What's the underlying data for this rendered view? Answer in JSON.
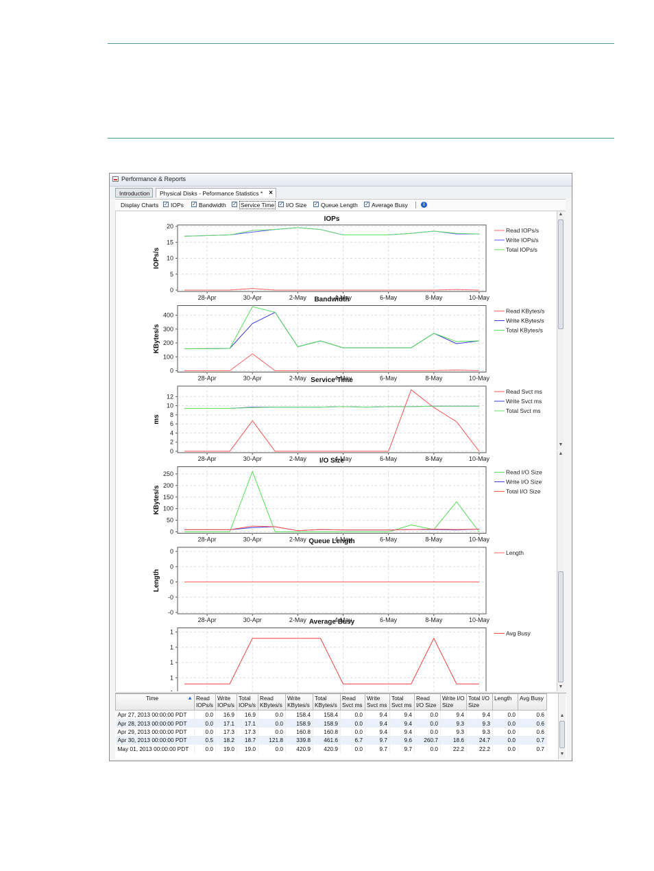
{
  "window": {
    "title": "Performance & Reports",
    "icon": "app-window-icon"
  },
  "tabs": [
    {
      "label": "Introduction"
    },
    {
      "label": "Physical Disks - Peformance Statistics *"
    }
  ],
  "toolbar": {
    "label": "Display Charts",
    "items": [
      {
        "label": "IOPs",
        "checked": true
      },
      {
        "label": "Bandwidth",
        "checked": true
      },
      {
        "label": "Service Time",
        "checked": true
      },
      {
        "label": "I/O Size",
        "checked": true
      },
      {
        "label": "Queue Length",
        "checked": true
      },
      {
        "label": "Average Busy",
        "checked": true
      }
    ],
    "info_icon": "info-icon"
  },
  "chart_data": [
    {
      "type": "line",
      "title": "IOPs",
      "ylabel": "IOPs/s",
      "ylim": [
        0,
        20
      ],
      "yticks": [
        "0",
        "5",
        "10",
        "15",
        "20"
      ],
      "x": [
        "27-Apr",
        "28-Apr",
        "29-Apr",
        "30-Apr",
        "1-May",
        "2-May",
        "3-May",
        "4-May",
        "5-May",
        "6-May",
        "7-May",
        "8-May",
        "9-May",
        "10-May"
      ],
      "xticks": [
        "28-Apr",
        "30-Apr",
        "2-May",
        "4-May",
        "6-May",
        "8-May",
        "10-May"
      ],
      "series": [
        {
          "name": "Read IOPs/s",
          "color": "#ff6060",
          "values": [
            0,
            0,
            0,
            0.5,
            0,
            0,
            0,
            0,
            0,
            0,
            0,
            0,
            0.2,
            0
          ]
        },
        {
          "name": "Write IOPs/s",
          "color": "#5a5aff",
          "values": [
            16.9,
            17.1,
            17.3,
            18.2,
            19.0,
            19.6,
            19.0,
            17.3,
            17.3,
            17.3,
            17.8,
            18.5,
            17.6,
            17.6
          ]
        },
        {
          "name": "Total IOPs/s",
          "color": "#66dd66",
          "values": [
            16.9,
            17.1,
            17.3,
            18.7,
            19.0,
            19.6,
            19.0,
            17.3,
            17.3,
            17.3,
            17.8,
            18.5,
            17.8,
            17.6
          ]
        }
      ]
    },
    {
      "type": "line",
      "title": "Bandwidth",
      "ylabel": "KBytes/s",
      "ylim": [
        0,
        460
      ],
      "yticks": [
        "0",
        "100",
        "200",
        "300",
        "400"
      ],
      "x": [
        "27-Apr",
        "28-Apr",
        "29-Apr",
        "30-Apr",
        "1-May",
        "2-May",
        "3-May",
        "4-May",
        "5-May",
        "6-May",
        "7-May",
        "8-May",
        "9-May",
        "10-May"
      ],
      "xticks": [
        "28-Apr",
        "30-Apr",
        "2-May",
        "4-May",
        "6-May",
        "8-May",
        "10-May"
      ],
      "series": [
        {
          "name": "Read KBytes/s",
          "color": "#ff6060",
          "values": [
            0,
            0,
            0,
            121.8,
            0,
            0,
            0,
            0,
            0,
            0,
            0,
            0,
            5,
            0
          ]
        },
        {
          "name": "Write KBytes/s",
          "color": "#3a3adf",
          "values": [
            158.4,
            158.9,
            160.8,
            339.8,
            420.9,
            173,
            215,
            165,
            165,
            165,
            165,
            270,
            195,
            215
          ]
        },
        {
          "name": "Total KBytes/s",
          "color": "#55dd55",
          "values": [
            158.4,
            158.9,
            160.8,
            461.6,
            420.9,
            173,
            215,
            165,
            165,
            165,
            165,
            270,
            210,
            215
          ]
        }
      ]
    },
    {
      "type": "line",
      "title": "Service Time",
      "ylabel": "ms",
      "ylim": [
        0,
        14
      ],
      "yticks": [
        "0",
        "2",
        "4",
        "6",
        "8",
        "10",
        "12"
      ],
      "x": [
        "27-Apr",
        "28-Apr",
        "29-Apr",
        "30-Apr",
        "1-May",
        "2-May",
        "3-May",
        "4-May",
        "5-May",
        "6-May",
        "7-May",
        "8-May",
        "9-May",
        "10-May"
      ],
      "xticks": [
        "28-Apr",
        "30-Apr",
        "2-May",
        "4-May",
        "6-May",
        "8-May",
        "10-May"
      ],
      "series": [
        {
          "name": "Read Svct ms",
          "color": "#ff5050",
          "values": [
            0,
            0,
            0,
            6.7,
            0,
            0,
            0,
            0,
            0,
            0,
            13.5,
            9.6,
            6.5,
            0
          ]
        },
        {
          "name": "Write Svct ms",
          "color": "#3a3adf",
          "values": [
            9.4,
            9.4,
            9.4,
            9.7,
            9.7,
            9.7,
            9.7,
            9.8,
            9.7,
            9.8,
            9.8,
            9.9,
            9.9,
            9.9
          ]
        },
        {
          "name": "Total Svct ms",
          "color": "#66dd66",
          "values": [
            9.4,
            9.4,
            9.4,
            9.6,
            9.7,
            9.7,
            9.7,
            9.8,
            9.7,
            9.8,
            9.8,
            9.9,
            9.9,
            9.9
          ]
        }
      ]
    },
    {
      "type": "line",
      "title": "I/O Size",
      "ylabel": "KBytes/s",
      "ylim": [
        0,
        275
      ],
      "yticks": [
        "0",
        "50",
        "100",
        "150",
        "200",
        "250"
      ],
      "x": [
        "27-Apr",
        "28-Apr",
        "29-Apr",
        "30-Apr",
        "1-May",
        "2-May",
        "3-May",
        "4-May",
        "5-May",
        "6-May",
        "7-May",
        "8-May",
        "9-May",
        "10-May"
      ],
      "xticks": [
        "28-Apr",
        "30-Apr",
        "2-May",
        "4-May",
        "6-May",
        "8-May",
        "10-May"
      ],
      "series": [
        {
          "name": "Read I/O Size",
          "color": "#55dd55",
          "values": [
            0,
            0,
            0,
            260.7,
            0,
            0,
            0,
            0,
            0,
            0,
            30,
            10,
            130,
            0
          ]
        },
        {
          "name": "Write I/O Size",
          "color": "#3a3adf",
          "values": [
            9.4,
            9.3,
            9.3,
            18.6,
            22.2,
            5,
            10,
            8,
            8,
            8,
            10,
            10,
            8,
            12
          ]
        },
        {
          "name": "Total I/O Size",
          "color": "#ff5050",
          "values": [
            9.4,
            9.3,
            9.3,
            24.7,
            22.2,
            5,
            10,
            8,
            8,
            8,
            10,
            12,
            10,
            12
          ]
        }
      ]
    },
    {
      "type": "line",
      "title": "Queue Length",
      "ylabel": "Length",
      "yticks": [
        "-0",
        "-0",
        "0",
        "0",
        "0"
      ],
      "x": [
        "27-Apr",
        "28-Apr",
        "29-Apr",
        "30-Apr",
        "1-May",
        "2-May",
        "3-May",
        "4-May",
        "5-May",
        "6-May",
        "7-May",
        "8-May",
        "9-May",
        "10-May"
      ],
      "xticks": [
        "28-Apr",
        "30-Apr",
        "2-May",
        "4-May",
        "6-May",
        "8-May",
        "10-May"
      ],
      "series": [
        {
          "name": "Length",
          "color": "#ff6060",
          "values": [
            0,
            0,
            0,
            0,
            0,
            0,
            0,
            0,
            0,
            0,
            0,
            0,
            0,
            0
          ]
        }
      ]
    },
    {
      "type": "line",
      "title": "Average Busy",
      "ylabel": "",
      "ylim": [
        0.58,
        0.72
      ],
      "yticks": [
        "1",
        "1",
        "1",
        "1",
        "1"
      ],
      "x": [
        "27-Apr",
        "28-Apr",
        "29-Apr",
        "30-Apr",
        "1-May",
        "2-May",
        "3-May",
        "4-May",
        "5-May",
        "6-May",
        "7-May",
        "8-May",
        "9-May",
        "10-May"
      ],
      "xticks": [
        "28-Apr",
        "30-Apr",
        "2-May",
        "4-May",
        "6-May",
        "8-May",
        "10-May"
      ],
      "series": [
        {
          "name": "Avg Busy",
          "color": "#ff4040",
          "values": [
            0.6,
            0.6,
            0.6,
            0.7,
            0.7,
            0.7,
            0.7,
            0.6,
            0.6,
            0.6,
            0.6,
            0.7,
            0.6,
            0.6
          ]
        }
      ]
    }
  ],
  "table": {
    "columns": [
      "Time",
      "Read IOPs/s",
      "Write IOPs/s",
      "Total IOPs/s",
      "Read KBytes/s",
      "Write KBytes/s",
      "Total KBytes/s",
      "Read Svct ms",
      "Write Svct ms",
      "Total Svct ms",
      "Read I/O Size",
      "Write I/O Size",
      "Total I/O Size",
      "Length",
      "Avg Busy"
    ],
    "rows": [
      [
        "Apr 27, 2013 00:00:00 PDT",
        "0.0",
        "16.9",
        "16.9",
        "0.0",
        "158.4",
        "158.4",
        "0.0",
        "9.4",
        "9.4",
        "0.0",
        "9.4",
        "9.4",
        "0.0",
        "0.6"
      ],
      [
        "Apr 28, 2013 00:00:00 PDT",
        "0.0",
        "17.1",
        "17.1",
        "0.0",
        "158.9",
        "158.9",
        "0.0",
        "9.4",
        "9.4",
        "0.0",
        "9.3",
        "9.3",
        "0.0",
        "0.6"
      ],
      [
        "Apr 29, 2013 00:00:00 PDT",
        "0.0",
        "17.3",
        "17.3",
        "0.0",
        "160.8",
        "160.8",
        "0.0",
        "9.4",
        "9.4",
        "0.0",
        "9.3",
        "9.3",
        "0.0",
        "0.6"
      ],
      [
        "Apr 30, 2013 00:00:00 PDT",
        "0.5",
        "18.2",
        "18.7",
        "121.8",
        "339.8",
        "461.6",
        "6.7",
        "9.7",
        "9.6",
        "260.7",
        "18.6",
        "24.7",
        "0.0",
        "0.7"
      ],
      [
        "May 01, 2013 00:00:00 PDT",
        "0.0",
        "19.0",
        "19.0",
        "0.0",
        "420.9",
        "420.9",
        "0.0",
        "9.7",
        "9.7",
        "0.0",
        "22.2",
        "22.2",
        "0.0",
        "0.7"
      ]
    ]
  }
}
